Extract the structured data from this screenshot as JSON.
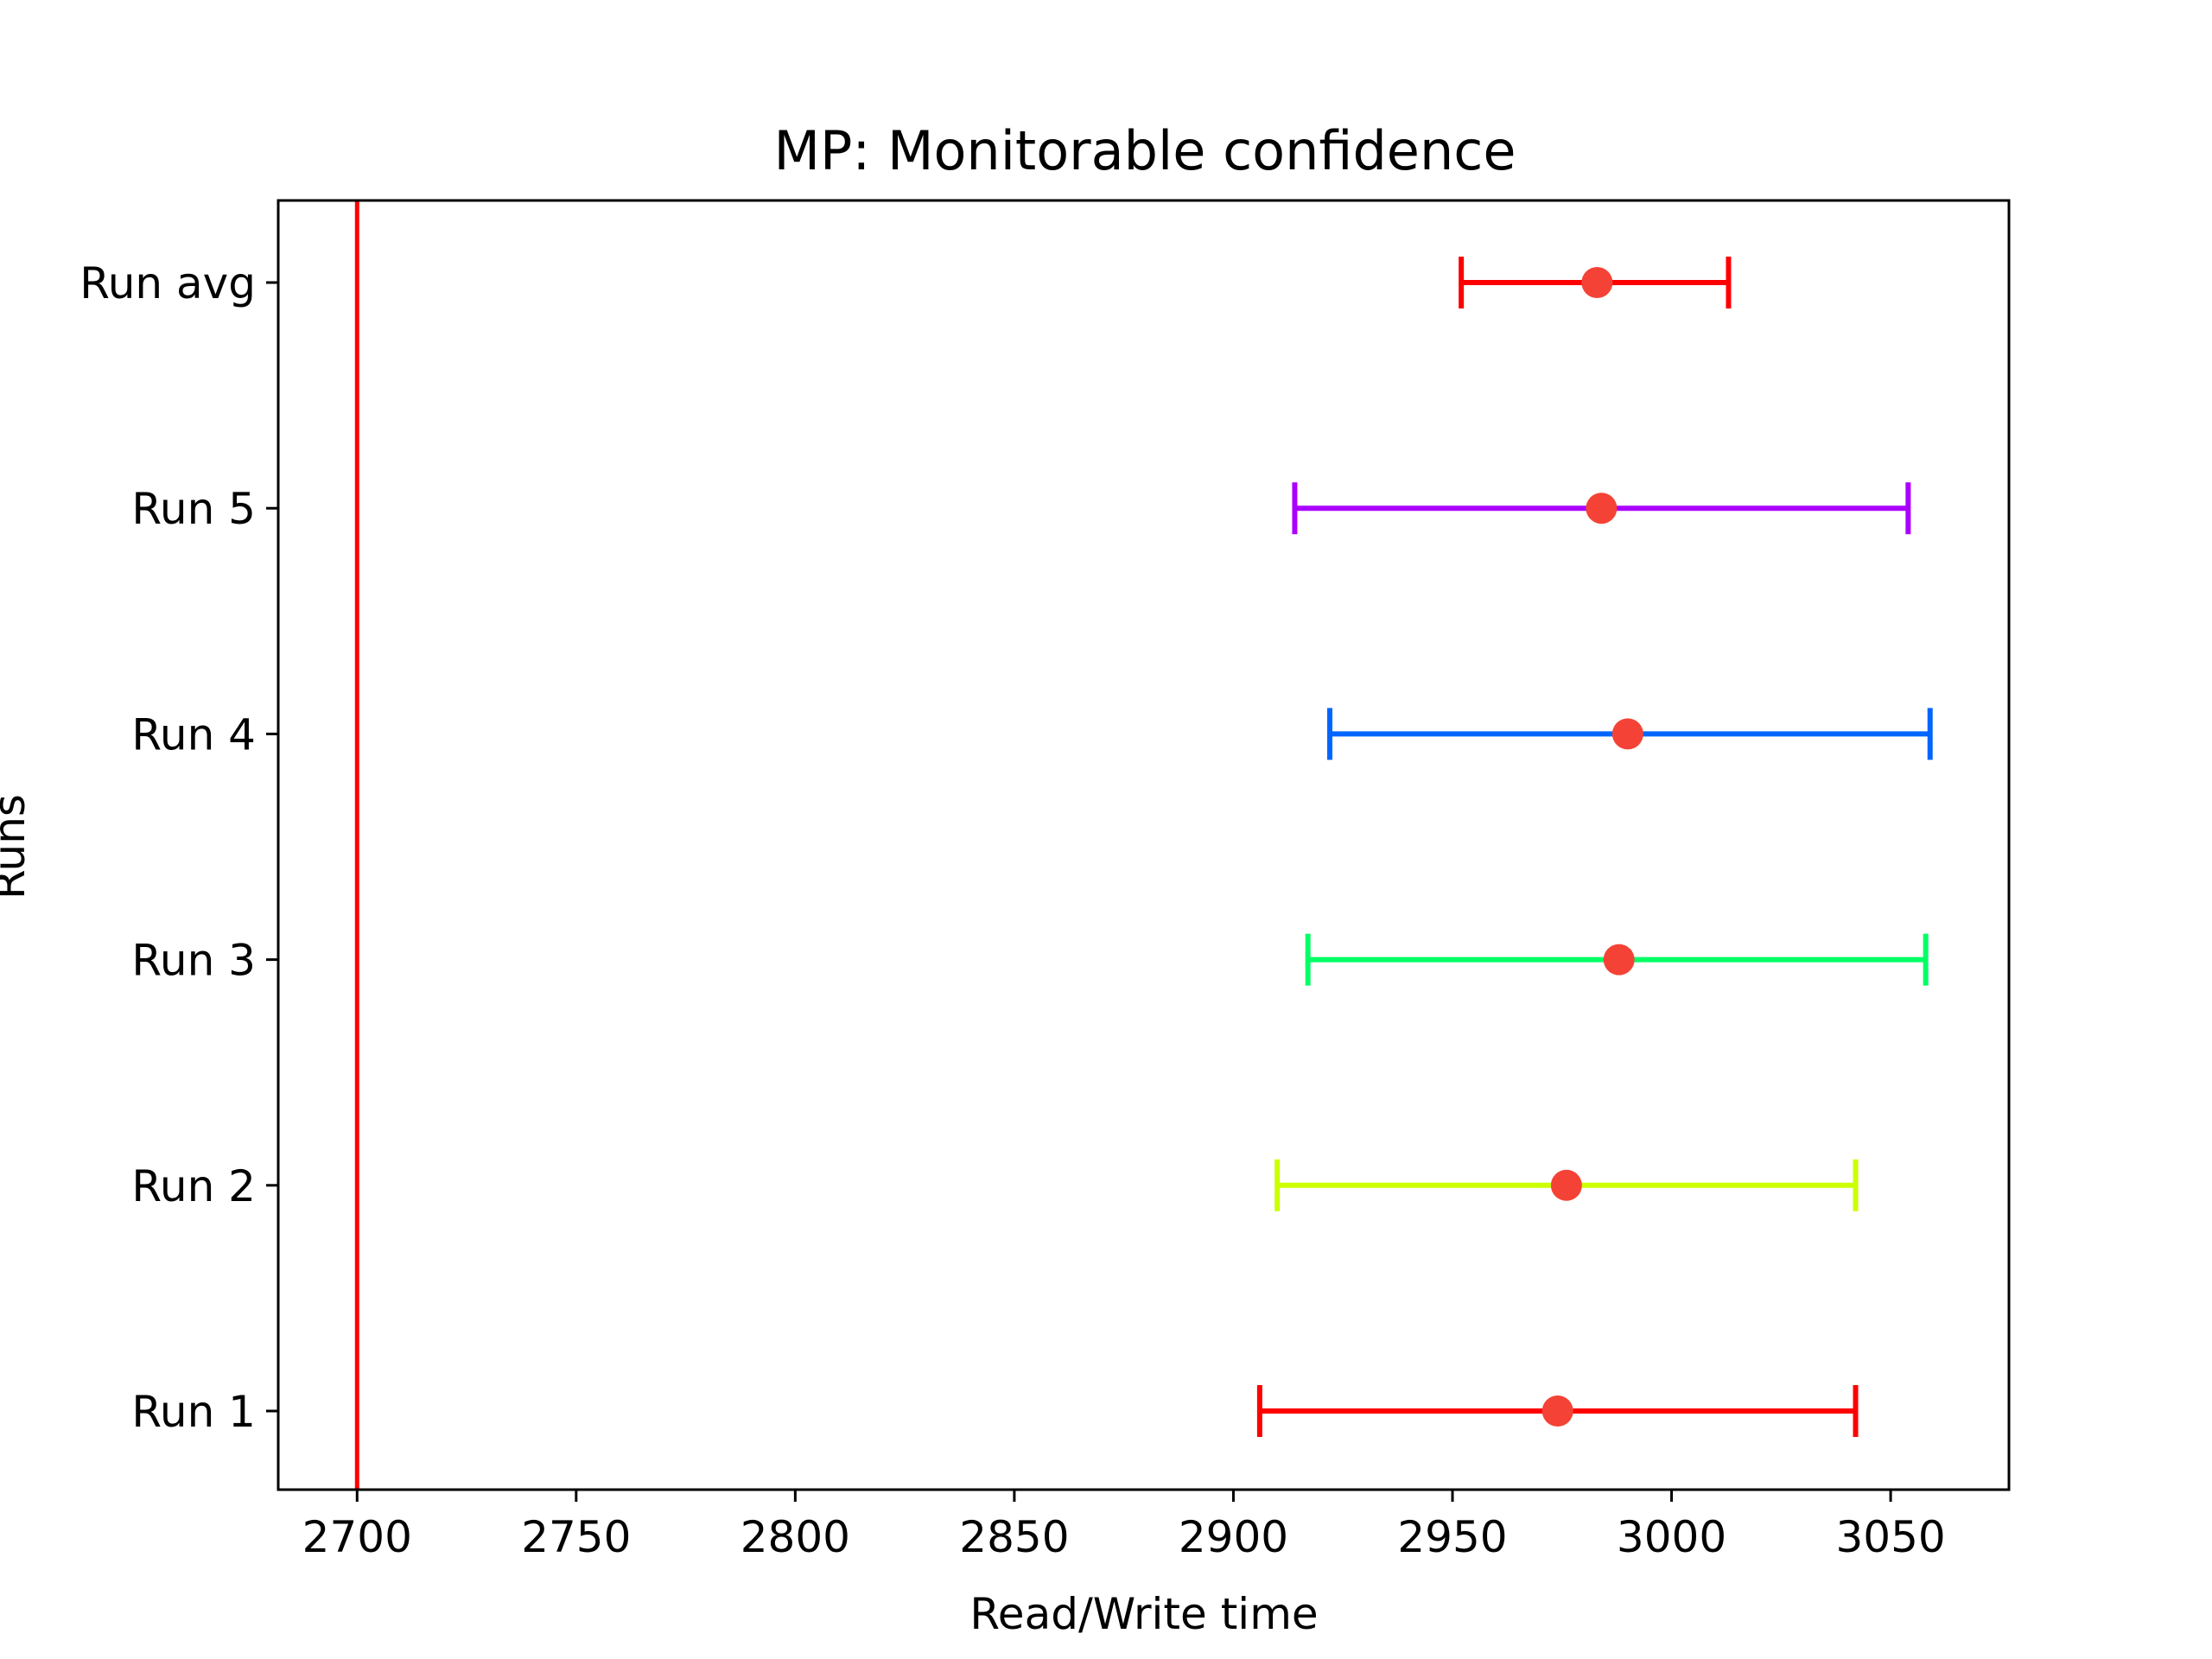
{
  "chart_data": {
    "type": "errorbar",
    "title": "MP: Monitorable confidence",
    "xlabel": "Read/Write time",
    "ylabel": "Runs",
    "xlim": [
      2682,
      3077
    ],
    "xticks": [
      2700,
      2750,
      2800,
      2850,
      2900,
      2950,
      3000,
      3050
    ],
    "grid": false,
    "reference_line": {
      "x": 2700,
      "color": "#ff0000"
    },
    "marker_color": "#f44336",
    "categories": [
      "Run 1",
      "Run 2",
      "Run 3",
      "Run 4",
      "Run 5",
      "Run avg"
    ],
    "series": [
      {
        "category": "Run 1",
        "value": 2974,
        "low": 2906,
        "high": 3042,
        "color": "#ff0000"
      },
      {
        "category": "Run 2",
        "value": 2976,
        "low": 2910,
        "high": 3042,
        "color": "#ccff00"
      },
      {
        "category": "Run 3",
        "value": 2988,
        "low": 2917,
        "high": 3058,
        "color": "#00ff66"
      },
      {
        "category": "Run 4",
        "value": 2990,
        "low": 2922,
        "high": 3059,
        "color": "#0066ff"
      },
      {
        "category": "Run 5",
        "value": 2984,
        "low": 2914,
        "high": 3054,
        "color": "#aa00ff"
      },
      {
        "category": "Run avg",
        "value": 2983,
        "low": 2952,
        "high": 3013,
        "color": "#ff0000"
      }
    ]
  }
}
